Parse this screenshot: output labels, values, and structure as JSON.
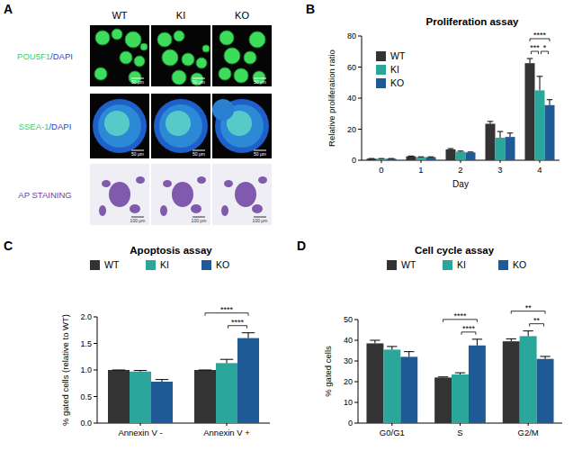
{
  "panel_a": {
    "panel": "A",
    "columns": [
      "WT",
      "KI",
      "KO"
    ],
    "rows": [
      [
        "POU5F1",
        "/DAPI"
      ],
      [
        "SSEA-1",
        "/DAPI"
      ],
      [
        "AP STAINING"
      ]
    ],
    "scale_bars": [
      "50 μm",
      "50 μm",
      "100 μm"
    ]
  },
  "chart_data": [
    {
      "panel": "B",
      "type": "bar",
      "title": "Proliferation assay",
      "x_label": "Day",
      "y_label": "Relative proliferation ratio",
      "categories": [
        "0",
        "1",
        "2",
        "3",
        "4"
      ],
      "series": [
        {
          "name": "WT",
          "color": "#333333",
          "values": [
            1,
            2.5,
            7,
            23.5,
            62.5
          ],
          "errors": [
            0.1,
            0.2,
            0.5,
            1.5,
            3
          ]
        },
        {
          "name": "KI",
          "color": "#2aa69b",
          "values": [
            1,
            2,
            5.5,
            14.5,
            45
          ],
          "errors": [
            0.1,
            0.2,
            0.4,
            4,
            9
          ]
        },
        {
          "name": "KO",
          "color": "#1d5a96",
          "values": [
            1,
            2,
            5,
            15,
            35.5
          ],
          "errors": [
            0.1,
            0.2,
            0.3,
            2.5,
            3.5
          ]
        }
      ],
      "ylim": [
        0,
        80
      ],
      "yticks": [
        0,
        20,
        40,
        60,
        80
      ],
      "legend": "top-left",
      "annotations": [
        {
          "label": "****",
          "between": [
            "WT",
            "KO"
          ],
          "at": "4"
        },
        {
          "label": "***",
          "between": [
            "WT",
            "KI"
          ],
          "at": "4"
        },
        {
          "label": "*",
          "between": [
            "KI",
            "KO"
          ],
          "at": "4"
        }
      ]
    },
    {
      "panel": "C",
      "type": "bar",
      "title": "Apoptosis assay",
      "y_label": "% gated cells (relative to WT)",
      "categories": [
        "Annexin V -",
        "Annexin V +"
      ],
      "series": [
        {
          "name": "WT",
          "color": "#333333",
          "values": [
            1,
            1
          ],
          "errors": [
            0,
            0
          ]
        },
        {
          "name": "KI",
          "color": "#2aa69b",
          "values": [
            0.97,
            1.13
          ],
          "errors": [
            0.02,
            0.07
          ]
        },
        {
          "name": "KO",
          "color": "#1d5a96",
          "values": [
            0.78,
            1.6
          ],
          "errors": [
            0.04,
            0.1
          ]
        }
      ],
      "ylim": [
        0,
        2
      ],
      "yticks": [
        {
          "value": 0,
          "label": "0.0"
        },
        {
          "value": 0.5,
          "label": "0.5"
        },
        {
          "value": 1,
          "label": "1.0"
        },
        {
          "value": 1.5,
          "label": "1.5"
        },
        {
          "value": 2,
          "label": "2.0"
        }
      ],
      "legend": "top",
      "annotations": [
        {
          "label": "****",
          "between": [
            "WT",
            "KO"
          ],
          "at": "Annexin V +"
        },
        {
          "label": "****",
          "between": [
            "KI",
            "KO"
          ],
          "at": "Annexin V +"
        }
      ]
    },
    {
      "panel": "D",
      "type": "bar",
      "title": "Cell cycle assay",
      "y_label": "% gated cells",
      "categories": [
        "G0/G1",
        "S",
        "G2/M"
      ],
      "series": [
        {
          "name": "WT",
          "color": "#333333",
          "values": [
            38.5,
            22,
            39.5
          ],
          "errors": [
            1.5,
            0.3,
            1.2
          ]
        },
        {
          "name": "KI",
          "color": "#2aa69b",
          "values": [
            35.5,
            23.5,
            42
          ],
          "errors": [
            1.5,
            0.8,
            2.5
          ]
        },
        {
          "name": "KO",
          "color": "#1d5a96",
          "values": [
            32,
            37.5,
            31
          ],
          "errors": [
            2.5,
            3,
            1.2
          ]
        }
      ],
      "ylim": [
        0,
        50
      ],
      "yticks": [
        0,
        10,
        20,
        30,
        40,
        50
      ],
      "legend": "top",
      "annotations": [
        {
          "label": "****",
          "between": [
            "WT",
            "KO"
          ],
          "at": "S"
        },
        {
          "label": "****",
          "between": [
            "KI",
            "KO"
          ],
          "at": "S"
        },
        {
          "label": "**",
          "between": [
            "WT",
            "KO"
          ],
          "at": "G2/M"
        },
        {
          "label": "**",
          "between": [
            "KI",
            "KO"
          ],
          "at": "G2/M"
        }
      ]
    }
  ]
}
